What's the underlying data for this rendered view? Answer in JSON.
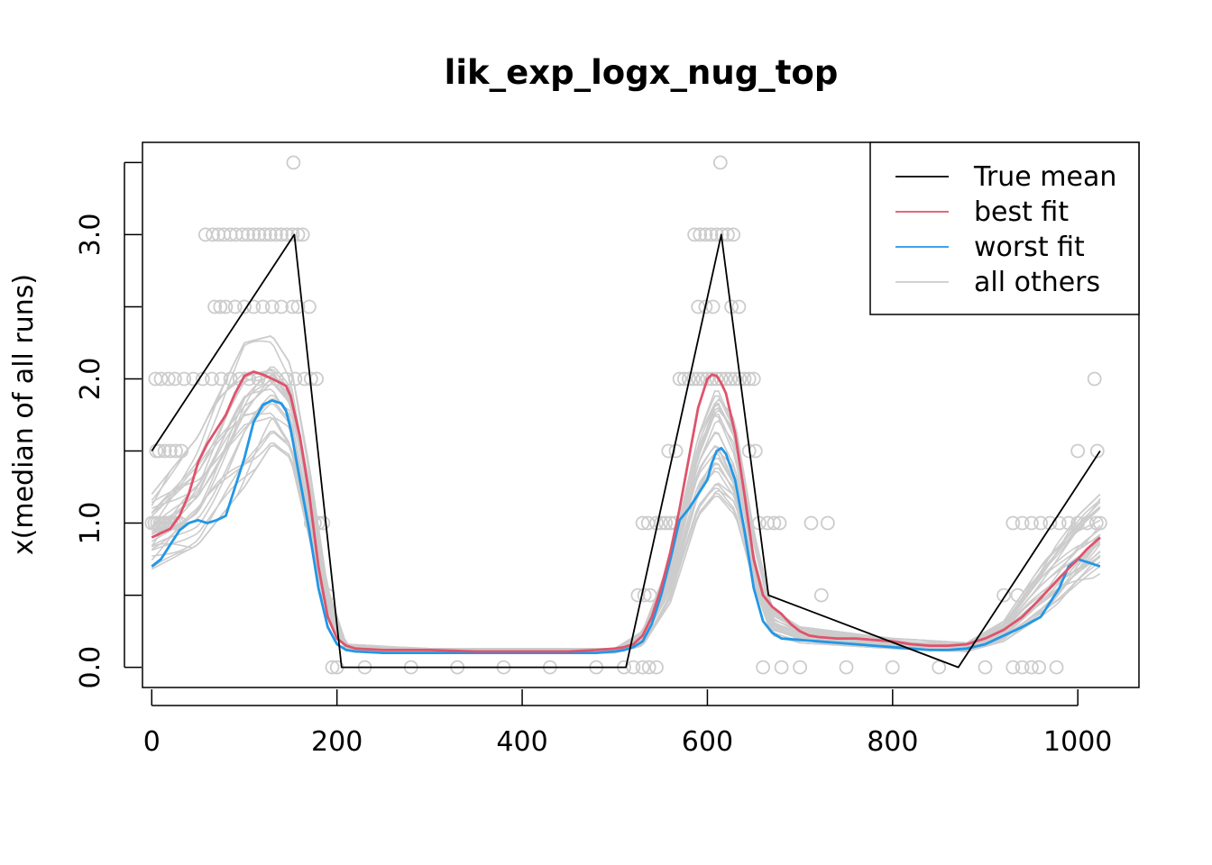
{
  "chart_data": {
    "type": "line",
    "title": "lik_exp_logx_nug_top",
    "xlabel": "",
    "ylabel": "x(median of all runs)",
    "xlim": [
      -10,
      1066
    ],
    "ylim": [
      -0.14,
      3.64
    ],
    "x_ticks": [
      0,
      200,
      400,
      600,
      800,
      1000
    ],
    "x_tick_labels": [
      "0",
      "200",
      "400",
      "600",
      "800",
      "1000"
    ],
    "y_ticks": [
      0.0,
      0.5,
      1.0,
      1.5,
      2.0,
      2.5,
      3.0,
      3.5
    ],
    "y_tick_labels": [
      "0.0",
      "",
      "1.0",
      "",
      "2.0",
      "",
      "3.0",
      ""
    ],
    "grid": false,
    "legend_position": "top-right",
    "colors": {
      "true_mean": "#000000",
      "best_fit": "#DF536B",
      "worst_fit": "#2297E6",
      "all_others": "#CCCCCC",
      "points": "#CCCCCC"
    },
    "legend": [
      {
        "label": "True mean",
        "color": "#000000"
      },
      {
        "label": "best fit",
        "color": "#DF536B"
      },
      {
        "label": "worst fit",
        "color": "#2297E6"
      },
      {
        "label": "all others",
        "color": "#CCCCCC"
      }
    ],
    "series": [
      {
        "name": "True mean",
        "color": "#000000",
        "x": [
          0,
          154,
          205,
          512,
          615,
          666,
          871,
          1024
        ],
        "y": [
          1.5,
          3.0,
          0.0,
          0.0,
          3.0,
          0.5,
          0.0,
          1.5
        ]
      },
      {
        "name": "best fit",
        "color": "#DF536B",
        "x": [
          0,
          10,
          20,
          30,
          40,
          50,
          60,
          70,
          80,
          90,
          100,
          110,
          120,
          130,
          140,
          145,
          150,
          160,
          170,
          180,
          190,
          200,
          210,
          220,
          250,
          300,
          350,
          400,
          450,
          480,
          500,
          510,
          520,
          530,
          540,
          550,
          560,
          570,
          580,
          590,
          600,
          605,
          610,
          615,
          620,
          630,
          640,
          650,
          660,
          670,
          680,
          690,
          700,
          710,
          720,
          740,
          760,
          780,
          800,
          820,
          840,
          860,
          880,
          900,
          920,
          940,
          960,
          980,
          1000,
          1010,
          1024
        ],
        "y": [
          0.9,
          0.93,
          0.96,
          1.05,
          1.2,
          1.42,
          1.55,
          1.65,
          1.75,
          1.9,
          2.02,
          2.05,
          2.03,
          2.0,
          1.97,
          1.95,
          1.88,
          1.6,
          1.2,
          0.7,
          0.35,
          0.2,
          0.15,
          0.13,
          0.12,
          0.12,
          0.11,
          0.11,
          0.11,
          0.12,
          0.13,
          0.14,
          0.16,
          0.22,
          0.35,
          0.55,
          0.8,
          1.1,
          1.45,
          1.8,
          2.0,
          2.03,
          2.02,
          1.97,
          1.9,
          1.62,
          1.2,
          0.75,
          0.5,
          0.42,
          0.37,
          0.3,
          0.25,
          0.22,
          0.21,
          0.2,
          0.2,
          0.19,
          0.18,
          0.16,
          0.15,
          0.15,
          0.16,
          0.2,
          0.26,
          0.35,
          0.48,
          0.62,
          0.75,
          0.82,
          0.9
        ]
      },
      {
        "name": "worst fit",
        "color": "#2297E6",
        "x": [
          0,
          10,
          20,
          30,
          40,
          50,
          60,
          70,
          80,
          90,
          100,
          110,
          120,
          130,
          140,
          145,
          150,
          160,
          170,
          180,
          190,
          200,
          210,
          220,
          250,
          300,
          350,
          400,
          450,
          480,
          500,
          510,
          520,
          530,
          540,
          550,
          560,
          570,
          580,
          590,
          600,
          605,
          610,
          615,
          620,
          630,
          640,
          650,
          660,
          670,
          680,
          700,
          720,
          740,
          760,
          780,
          800,
          820,
          840,
          860,
          880,
          900,
          920,
          940,
          960,
          980,
          990,
          1000,
          1010,
          1024
        ],
        "y": [
          0.7,
          0.75,
          0.85,
          0.95,
          1.0,
          1.02,
          1.0,
          1.02,
          1.05,
          1.25,
          1.45,
          1.7,
          1.82,
          1.85,
          1.83,
          1.78,
          1.65,
          1.3,
          0.95,
          0.55,
          0.28,
          0.16,
          0.12,
          0.11,
          0.1,
          0.1,
          0.1,
          0.1,
          0.1,
          0.1,
          0.11,
          0.12,
          0.14,
          0.18,
          0.3,
          0.5,
          0.75,
          1.02,
          1.1,
          1.2,
          1.3,
          1.42,
          1.5,
          1.52,
          1.48,
          1.3,
          0.95,
          0.55,
          0.32,
          0.24,
          0.2,
          0.19,
          0.18,
          0.17,
          0.16,
          0.15,
          0.14,
          0.13,
          0.12,
          0.12,
          0.13,
          0.16,
          0.22,
          0.28,
          0.35,
          0.55,
          0.7,
          0.75,
          0.73,
          0.7
        ]
      }
    ],
    "other_runs_envelope": {
      "name": "all others",
      "x": [
        0,
        50,
        100,
        130,
        150,
        170,
        190,
        210,
        300,
        500,
        530,
        560,
        590,
        610,
        630,
        650,
        670,
        700,
        800,
        880,
        920,
        960,
        1000,
        1024
      ],
      "low": [
        0.68,
        0.85,
        1.25,
        1.55,
        1.45,
        0.9,
        0.35,
        0.12,
        0.1,
        0.1,
        0.15,
        0.45,
        1.05,
        1.2,
        1.05,
        0.55,
        0.22,
        0.17,
        0.13,
        0.11,
        0.18,
        0.35,
        0.55,
        0.65
      ],
      "high": [
        1.2,
        1.6,
        2.25,
        2.3,
        2.1,
        1.4,
        0.55,
        0.16,
        0.13,
        0.13,
        0.25,
        0.75,
        1.6,
        1.95,
        1.7,
        0.95,
        0.4,
        0.28,
        0.2,
        0.17,
        0.32,
        0.7,
        1.05,
        1.2
      ]
    },
    "points": {
      "x": [
        0,
        3,
        6,
        9,
        12,
        15,
        18,
        21,
        24,
        27,
        30,
        5,
        8,
        14,
        20,
        26,
        32,
        4,
        10,
        18,
        25,
        35,
        45,
        55,
        65,
        75,
        85,
        95,
        105,
        115,
        125,
        135,
        145,
        155,
        165,
        172,
        178,
        58,
        66,
        72,
        78,
        85,
        91,
        98,
        104,
        110,
        116,
        122,
        128,
        134,
        140,
        146,
        152,
        158,
        163,
        68,
        74,
        80,
        90,
        100,
        110,
        120,
        130,
        140,
        152,
        158,
        170,
        153,
        172,
        176,
        180,
        185,
        190,
        195,
        200,
        230,
        280,
        330,
        380,
        430,
        480,
        510,
        520,
        530,
        537,
        545,
        525,
        532,
        538,
        545,
        550,
        555,
        560,
        565,
        570,
        575,
        580,
        585,
        590,
        595,
        600,
        605,
        610,
        615,
        620,
        625,
        630,
        635,
        640,
        645,
        650,
        656,
        530,
        536,
        558,
        566,
        590,
        598,
        606,
        626,
        634,
        586,
        592,
        598,
        604,
        610,
        616,
        622,
        628,
        614,
        645,
        652,
        665,
        672,
        678,
        712,
        730,
        723,
        660,
        680,
        700,
        750,
        800,
        850,
        900,
        930,
        940,
        950,
        958,
        977,
        920,
        935,
        930,
        940,
        950,
        960,
        970,
        980,
        990,
        1000,
        1010,
        1020,
        1024,
        1000,
        1021,
        1018
      ],
      "y": [
        1.0,
        1.0,
        1.0,
        1.0,
        1.0,
        1.0,
        1.0,
        1.0,
        1.0,
        1.0,
        1.0,
        1.5,
        1.5,
        1.5,
        1.5,
        1.5,
        1.5,
        2.0,
        2.0,
        2.0,
        2.0,
        2.0,
        2.0,
        2.0,
        2.0,
        2.0,
        2.0,
        2.0,
        2.0,
        2.0,
        2.0,
        2.0,
        2.0,
        2.0,
        2.0,
        2.0,
        2.0,
        3.0,
        3.0,
        3.0,
        3.0,
        3.0,
        3.0,
        3.0,
        3.0,
        3.0,
        3.0,
        3.0,
        3.0,
        3.0,
        3.0,
        3.0,
        3.0,
        3.0,
        3.0,
        2.5,
        2.5,
        2.5,
        2.5,
        2.5,
        2.5,
        2.5,
        2.5,
        2.5,
        2.5,
        2.5,
        2.5,
        3.5,
        1.0,
        1.0,
        1.0,
        1.0,
        0.5,
        0.0,
        0.0,
        0.0,
        0.0,
        0.0,
        0.0,
        0.0,
        0.0,
        0.0,
        0.0,
        0.0,
        0.0,
        0.0,
        0.5,
        0.5,
        0.5,
        1.0,
        1.0,
        1.0,
        1.0,
        1.0,
        2.0,
        2.0,
        2.0,
        2.0,
        2.0,
        2.0,
        2.0,
        2.0,
        2.0,
        2.0,
        2.0,
        2.0,
        2.0,
        2.0,
        2.0,
        2.0,
        2.0,
        1.0,
        1.0,
        1.0,
        1.5,
        1.5,
        2.5,
        2.5,
        2.5,
        2.5,
        2.5,
        3.0,
        3.0,
        3.0,
        3.0,
        3.0,
        3.0,
        3.0,
        3.0,
        3.5,
        1.5,
        1.5,
        1.0,
        1.0,
        1.0,
        1.0,
        1.0,
        0.5,
        0.0,
        0.0,
        0.0,
        0.0,
        0.0,
        0.0,
        0.0,
        0.0,
        0.0,
        0.0,
        0.0,
        0.0,
        0.5,
        0.5,
        1.0,
        1.0,
        1.0,
        1.0,
        1.0,
        1.0,
        1.0,
        1.0,
        1.0,
        1.0,
        1.0,
        1.5,
        1.5,
        2.0
      ]
    }
  }
}
